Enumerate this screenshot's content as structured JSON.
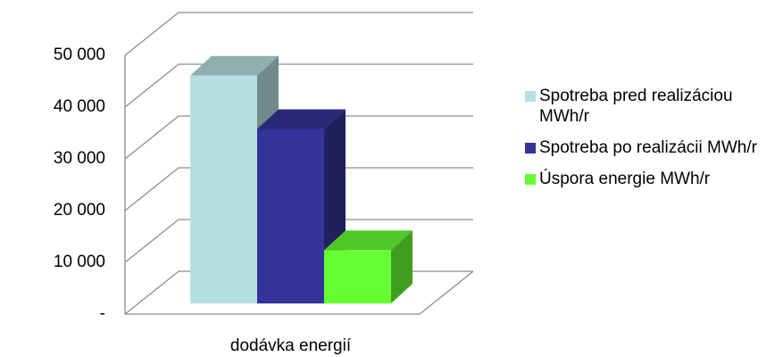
{
  "chart_data": {
    "type": "bar3d",
    "categories": [
      "dodávka energií"
    ],
    "series": [
      {
        "name": "Spotreba pred realizáciou MWh/r",
        "color": "#b7dfe0",
        "values": [
          44000
        ]
      },
      {
        "name": "Spotreba po realizácii MWh/r",
        "color": "#333399",
        "values": [
          33700
        ]
      },
      {
        "name": "Úspora energie MWh/r",
        "color": "#66ff33",
        "values": [
          10300
        ]
      }
    ],
    "ylim": [
      0,
      50000
    ],
    "yticks": [
      {
        "value": 0,
        "label": "-"
      },
      {
        "value": 10000,
        "label": "10 000"
      },
      {
        "value": 20000,
        "label": "20 000"
      },
      {
        "value": 30000,
        "label": "30 000"
      },
      {
        "value": 40000,
        "label": "40 000"
      },
      {
        "value": 50000,
        "label": "50 000"
      }
    ],
    "grid": true,
    "legend": "right"
  }
}
